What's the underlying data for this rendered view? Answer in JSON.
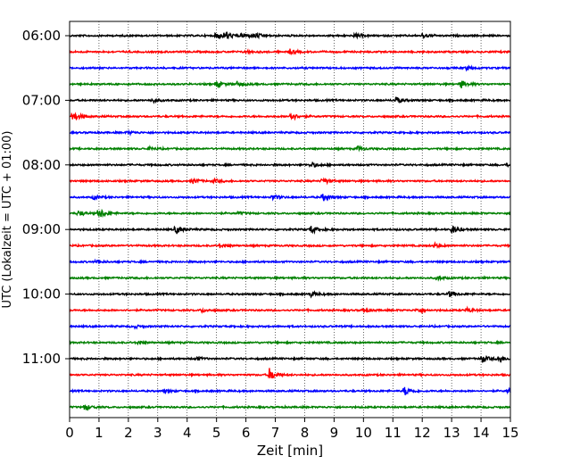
{
  "chart_data": {
    "type": "line",
    "title": "",
    "xlabel": "Zeit  [min]",
    "ylabel": "UTC (Lokalzeit = UTC + 01:00)",
    "xlim": [
      0,
      15
    ],
    "x_ticks": [
      0,
      1,
      2,
      3,
      4,
      5,
      6,
      7,
      8,
      9,
      10,
      11,
      12,
      13,
      14,
      15
    ],
    "y_tick_labels": [
      "06:00",
      "07:00",
      "08:00",
      "09:00",
      "10:00",
      "11:00"
    ],
    "y_tick_trace_index": [
      0,
      4,
      8,
      12,
      16,
      20
    ],
    "trace_interval_min": 15,
    "first_trace_start": "06:00",
    "grid": "vertical dotted at each minute",
    "trace_colors": [
      "#000000",
      "#ff0000",
      "#0000ff",
      "#008000"
    ],
    "traces": [
      {
        "start": "06:00",
        "events": [
          {
            "t": 5.0,
            "amp": 0.4
          },
          {
            "t": 5.3,
            "amp": 0.45
          },
          {
            "t": 5.9,
            "amp": 0.3
          },
          {
            "t": 6.3,
            "amp": 0.3
          },
          {
            "t": 9.7,
            "amp": 0.25
          },
          {
            "t": 12.0,
            "amp": 0.25
          }
        ]
      },
      {
        "start": "06:15",
        "events": [
          {
            "t": 7.5,
            "amp": 0.25
          },
          {
            "t": 6.0,
            "amp": 0.15
          }
        ]
      },
      {
        "start": "06:30",
        "events": [
          {
            "t": 13.5,
            "amp": 0.2
          }
        ]
      },
      {
        "start": "06:45",
        "events": [
          {
            "t": 5.0,
            "amp": 0.3
          },
          {
            "t": 5.7,
            "amp": 0.25
          },
          {
            "t": 13.3,
            "amp": 0.45
          }
        ]
      },
      {
        "start": "07:00",
        "events": [
          {
            "t": 2.8,
            "amp": 0.25
          },
          {
            "t": 11.1,
            "amp": 0.35
          }
        ]
      },
      {
        "start": "07:15",
        "events": [
          {
            "t": 0.1,
            "amp": 0.55
          },
          {
            "t": 7.5,
            "amp": 0.5
          }
        ]
      },
      {
        "start": "07:30",
        "events": [
          {
            "t": 2.0,
            "amp": 0.15
          }
        ]
      },
      {
        "start": "07:45",
        "events": [
          {
            "t": 2.7,
            "amp": 0.2
          },
          {
            "t": 9.8,
            "amp": 0.25
          }
        ]
      },
      {
        "start": "08:00",
        "events": [
          {
            "t": 8.2,
            "amp": 0.3
          },
          {
            "t": 14.9,
            "amp": 0.2
          }
        ]
      },
      {
        "start": "08:15",
        "events": [
          {
            "t": 4.2,
            "amp": 0.25
          },
          {
            "t": 4.9,
            "amp": 0.2
          },
          {
            "t": 8.6,
            "amp": 0.35
          }
        ]
      },
      {
        "start": "08:30",
        "events": [
          {
            "t": 0.8,
            "amp": 0.2
          },
          {
            "t": 6.9,
            "amp": 0.3
          },
          {
            "t": 8.6,
            "amp": 0.45
          }
        ]
      },
      {
        "start": "08:45",
        "events": [
          {
            "t": 0.3,
            "amp": 0.3
          },
          {
            "t": 1.0,
            "amp": 0.6
          },
          {
            "t": 5.7,
            "amp": 0.15
          }
        ]
      },
      {
        "start": "09:00",
        "events": [
          {
            "t": 3.6,
            "amp": 0.55
          },
          {
            "t": 8.2,
            "amp": 0.45
          },
          {
            "t": 13.0,
            "amp": 0.5
          }
        ]
      },
      {
        "start": "09:15",
        "events": [
          {
            "t": 5.1,
            "amp": 0.2
          },
          {
            "t": 12.4,
            "amp": 0.25
          }
        ]
      },
      {
        "start": "09:30",
        "events": [
          {
            "t": 0.9,
            "amp": 0.15
          }
        ]
      },
      {
        "start": "09:45",
        "events": [
          {
            "t": 12.5,
            "amp": 0.25
          }
        ]
      },
      {
        "start": "10:00",
        "events": [
          {
            "t": 8.2,
            "amp": 0.3
          },
          {
            "t": 12.9,
            "amp": 0.35
          }
        ]
      },
      {
        "start": "10:15",
        "events": [
          {
            "t": 4.5,
            "amp": 0.2
          },
          {
            "t": 10.0,
            "amp": 0.2
          },
          {
            "t": 11.8,
            "amp": 0.3
          },
          {
            "t": 13.5,
            "amp": 0.25
          }
        ]
      },
      {
        "start": "10:30",
        "events": [
          {
            "t": 2.2,
            "amp": 0.15
          }
        ]
      },
      {
        "start": "10:45",
        "events": [
          {
            "t": 2.3,
            "amp": 0.15
          }
        ]
      },
      {
        "start": "11:00",
        "events": [
          {
            "t": 4.3,
            "amp": 0.2
          },
          {
            "t": 14.0,
            "amp": 0.45
          },
          {
            "t": 14.6,
            "amp": 0.35
          }
        ]
      },
      {
        "start": "11:15",
        "events": [
          {
            "t": 6.8,
            "amp": 0.7
          }
        ]
      },
      {
        "start": "11:30",
        "events": [
          {
            "t": 3.2,
            "amp": 0.15
          },
          {
            "t": 11.4,
            "amp": 0.5
          },
          {
            "t": 14.9,
            "amp": 0.35
          }
        ]
      },
      {
        "start": "11:45",
        "events": [
          {
            "t": 0.5,
            "amp": 0.4
          }
        ]
      }
    ]
  }
}
